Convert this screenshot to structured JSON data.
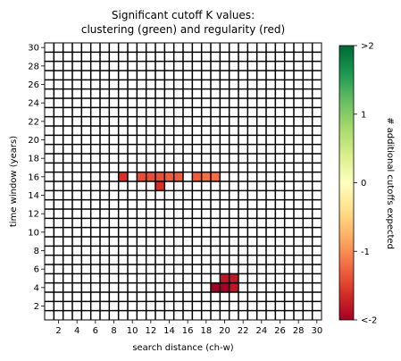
{
  "chart_data": {
    "type": "heatmap",
    "title_lines": [
      "Significant cutoff K values:",
      "clustering (green) and regularity (red)"
    ],
    "xlabel": "search distance (ch-w)",
    "ylabel": "time window (years)",
    "x_ticks": [
      "2",
      "4",
      "6",
      "8",
      "10",
      "12",
      "14",
      "16",
      "18",
      "20",
      "22",
      "24",
      "26",
      "28",
      "30"
    ],
    "y_ticks": [
      "2",
      "4",
      "6",
      "8",
      "10",
      "12",
      "14",
      "16",
      "18",
      "20",
      "22",
      "24",
      "26",
      "28",
      "30"
    ],
    "x_range": [
      1,
      30
    ],
    "y_range": [
      1,
      30
    ],
    "colorbar": {
      "label": "# additional cutoffs expected",
      "tick_labels": [
        ">2",
        "1",
        "0",
        "-1",
        "<-2"
      ],
      "tick_values": [
        2,
        1,
        0,
        -1,
        -2
      ],
      "range": [
        -2,
        2
      ],
      "colormap": "RdYlGn"
    },
    "cells": [
      {
        "x": 9,
        "y": 16,
        "value": -1.6
      },
      {
        "x": 11,
        "y": 16,
        "value": -1.4
      },
      {
        "x": 12,
        "y": 16,
        "value": -1.4
      },
      {
        "x": 13,
        "y": 16,
        "value": -1.4
      },
      {
        "x": 14,
        "y": 16,
        "value": -1.3
      },
      {
        "x": 15,
        "y": 16,
        "value": -1.3
      },
      {
        "x": 13,
        "y": 15,
        "value": -1.6
      },
      {
        "x": 17,
        "y": 16,
        "value": -1.3
      },
      {
        "x": 18,
        "y": 16,
        "value": -1.2
      },
      {
        "x": 19,
        "y": 16,
        "value": -1.2
      },
      {
        "x": 20,
        "y": 5,
        "value": -1.8
      },
      {
        "x": 21,
        "y": 5,
        "value": -1.8
      },
      {
        "x": 19,
        "y": 4,
        "value": -2.0
      },
      {
        "x": 20,
        "y": 4,
        "value": -2.0
      },
      {
        "x": 21,
        "y": 4,
        "value": -1.8
      }
    ],
    "background_color": "#ffffff",
    "gridline_color": "#000000"
  }
}
